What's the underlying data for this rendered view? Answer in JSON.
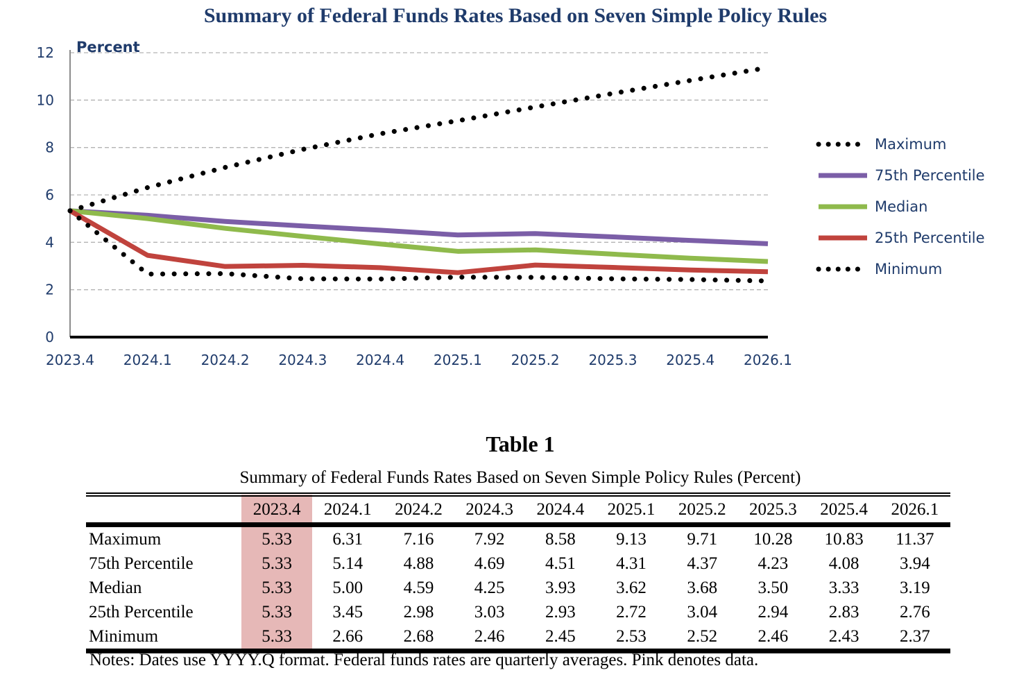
{
  "chart_data": {
    "type": "line",
    "title": "Summary of Federal Funds Rates Based on Seven Simple Policy Rules",
    "ylabel": "Percent",
    "xlabel": "",
    "categories": [
      "2023.4",
      "2024.1",
      "2024.2",
      "2024.3",
      "2024.4",
      "2025.1",
      "2025.2",
      "2025.3",
      "2025.4",
      "2026.1"
    ],
    "ylim": [
      0,
      12
    ],
    "yticks": [
      0,
      2,
      4,
      6,
      8,
      10,
      12
    ],
    "grid": true,
    "legend_position": "right",
    "series": [
      {
        "name": "Maximum",
        "style": "dotted",
        "color": "#000000",
        "values": [
          5.33,
          6.31,
          7.16,
          7.92,
          8.58,
          9.13,
          9.71,
          10.28,
          10.83,
          11.37
        ]
      },
      {
        "name": "75th Percentile",
        "style": "solid",
        "color": "#7b5ea7",
        "values": [
          5.33,
          5.14,
          4.88,
          4.69,
          4.51,
          4.31,
          4.37,
          4.23,
          4.08,
          3.94
        ]
      },
      {
        "name": "Median",
        "style": "solid",
        "color": "#8fba4c",
        "values": [
          5.33,
          5.0,
          4.59,
          4.25,
          3.93,
          3.62,
          3.68,
          3.5,
          3.33,
          3.19
        ]
      },
      {
        "name": "25th Percentile",
        "style": "solid",
        "color": "#c0433d",
        "values": [
          5.33,
          3.45,
          2.98,
          3.03,
          2.93,
          2.72,
          3.04,
          2.94,
          2.83,
          2.76
        ]
      },
      {
        "name": "Minimum",
        "style": "dotted",
        "color": "#000000",
        "values": [
          5.33,
          2.66,
          2.68,
          2.46,
          2.45,
          2.53,
          2.52,
          2.46,
          2.43,
          2.37
        ]
      }
    ]
  },
  "table": {
    "title": "Table 1",
    "subtitle": "Summary of Federal Funds Rates Based on Seven Simple Policy Rules (Percent)",
    "columns": [
      "2023.4",
      "2024.1",
      "2024.2",
      "2024.3",
      "2024.4",
      "2025.1",
      "2025.2",
      "2025.3",
      "2025.4",
      "2026.1"
    ],
    "rows": [
      {
        "label": "Maximum",
        "values": [
          "5.33",
          "6.31",
          "7.16",
          "7.92",
          "8.58",
          "9.13",
          "9.71",
          "10.28",
          "10.83",
          "11.37"
        ]
      },
      {
        "label": "75th Percentile",
        "values": [
          "5.33",
          "5.14",
          "4.88",
          "4.69",
          "4.51",
          "4.31",
          "4.37",
          "4.23",
          "4.08",
          "3.94"
        ]
      },
      {
        "label": "Median",
        "values": [
          "5.33",
          "5.00",
          "4.59",
          "4.25",
          "3.93",
          "3.62",
          "3.68",
          "3.50",
          "3.33",
          "3.19"
        ]
      },
      {
        "label": "25th Percentile",
        "values": [
          "5.33",
          "3.45",
          "2.98",
          "3.03",
          "2.93",
          "2.72",
          "3.04",
          "2.94",
          "2.83",
          "2.76"
        ]
      },
      {
        "label": "Minimum",
        "values": [
          "5.33",
          "2.66",
          "2.68",
          "2.46",
          "2.45",
          "2.53",
          "2.52",
          "2.46",
          "2.43",
          "2.37"
        ]
      }
    ],
    "highlight_color": "#e6b8b7",
    "note": "Notes: Dates use YYYY.Q format.  Federal funds rates are quarterly averages.  Pink denotes data."
  }
}
